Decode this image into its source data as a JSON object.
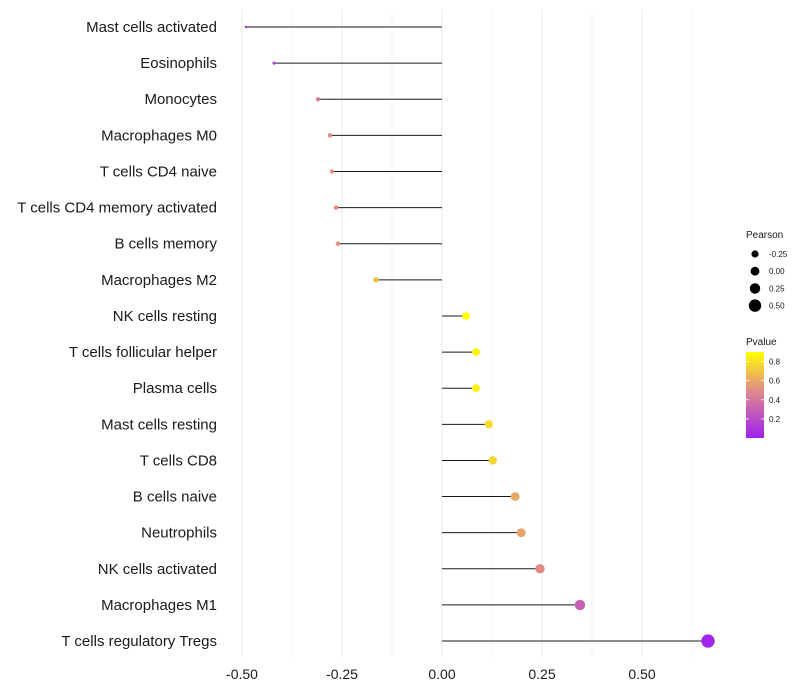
{
  "chart_data": {
    "type": "scatter",
    "subtype": "lollipop",
    "title": "",
    "xlabel": "",
    "ylabel": "",
    "xlim": [
      -0.5,
      0.67
    ],
    "x_ticks": [
      -0.5,
      -0.25,
      0.0,
      0.25,
      0.5
    ],
    "x_tick_labels": [
      "-0.50",
      "-0.25",
      "0.00",
      "0.25",
      "0.50"
    ],
    "grid": true,
    "legend_position": "right",
    "categories": [
      "Mast cells activated",
      "Eosinophils",
      "Monocytes",
      "Macrophages M0",
      "T cells CD4 naive",
      "T cells CD4 memory activated",
      "B cells memory",
      "Macrophages M2",
      "NK cells resting",
      "T cells follicular helper",
      "Plasma cells",
      "Mast cells resting",
      "T cells CD8",
      "B cells naive",
      "Neutrophils",
      "NK cells activated",
      "Macrophages M1",
      "T cells regulatory  Tregs"
    ],
    "pearson": [
      -0.49,
      -0.42,
      -0.31,
      -0.28,
      -0.275,
      -0.265,
      -0.26,
      -0.165,
      0.06,
      0.085,
      0.085,
      0.117,
      0.127,
      0.183,
      0.198,
      0.245,
      0.345,
      0.665
    ],
    "pvalue": [
      0.05,
      0.15,
      0.4,
      0.5,
      0.52,
      0.5,
      0.52,
      0.68,
      0.9,
      0.85,
      0.85,
      0.78,
      0.75,
      0.6,
      0.58,
      0.5,
      0.3,
      0.02
    ],
    "legends": {
      "size": {
        "title": "Pearson",
        "values": [
          -0.25,
          0.0,
          0.25,
          0.5
        ],
        "labels": [
          "-0.25",
          "0.00",
          "0.25",
          "0.50"
        ]
      },
      "color": {
        "title": "Pvalue",
        "ticks": [
          0.2,
          0.4,
          0.6,
          0.8
        ],
        "labels": [
          "0.2",
          "0.4",
          "0.6",
          "0.8"
        ],
        "range": [
          0.0,
          0.9
        ],
        "low_color": "#a020f0",
        "mid_color": "#e08a8a",
        "high_color": "#ffff00"
      }
    }
  }
}
